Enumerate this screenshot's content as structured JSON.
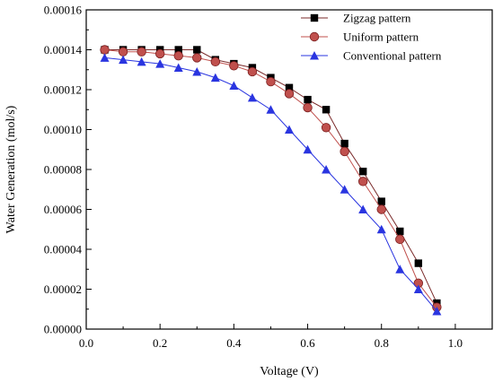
{
  "chart_data": {
    "type": "line",
    "xlabel": "Voltage (V)",
    "ylabel": "Water Generation (mol/s)",
    "xlim": [
      0.0,
      1.1
    ],
    "ylim": [
      0.0,
      0.00016
    ],
    "xticks": [
      "0.0",
      "0.2",
      "0.4",
      "0.6",
      "0.8",
      "1.0"
    ],
    "yticks": [
      "0.00000",
      "0.00002",
      "0.00004",
      "0.00006",
      "0.00008",
      "0.00010",
      "0.00012",
      "0.00014",
      "0.00016"
    ],
    "grid": false,
    "legend_position": "top-right",
    "x": [
      0.05,
      0.1,
      0.15,
      0.2,
      0.25,
      0.3,
      0.35,
      0.4,
      0.45,
      0.5,
      0.55,
      0.6,
      0.65,
      0.7,
      0.75,
      0.8,
      0.85,
      0.9,
      0.95
    ],
    "series": [
      {
        "name": "Zigzag pattern",
        "marker": "square",
        "color": "#000000",
        "line_color": "#7a2a2a",
        "values": [
          0.00014,
          0.00014,
          0.00014,
          0.00014,
          0.00014,
          0.00014,
          0.000135,
          0.000133,
          0.000131,
          0.000126,
          0.000121,
          0.000115,
          0.00011,
          9.3e-05,
          7.9e-05,
          6.4e-05,
          4.9e-05,
          3.3e-05,
          1.3e-05
        ]
      },
      {
        "name": "Uniform pattern",
        "marker": "circle",
        "color": "#c0504d",
        "line_color": "#c0504d",
        "values": [
          0.00014,
          0.000139,
          0.000139,
          0.000138,
          0.000137,
          0.000136,
          0.000134,
          0.000132,
          0.000129,
          0.000124,
          0.000118,
          0.000111,
          0.000101,
          8.9e-05,
          7.4e-05,
          6e-05,
          4.5e-05,
          2.3e-05,
          1.1e-05
        ]
      },
      {
        "name": "Conventional pattern",
        "marker": "triangle",
        "color": "#2a35e0",
        "line_color": "#2a35e0",
        "values": [
          0.000136,
          0.000135,
          0.000134,
          0.000133,
          0.000131,
          0.000129,
          0.000126,
          0.000122,
          0.000116,
          0.00011,
          0.0001,
          9e-05,
          8e-05,
          7e-05,
          6e-05,
          5e-05,
          3e-05,
          2e-05,
          9e-06
        ]
      }
    ]
  }
}
